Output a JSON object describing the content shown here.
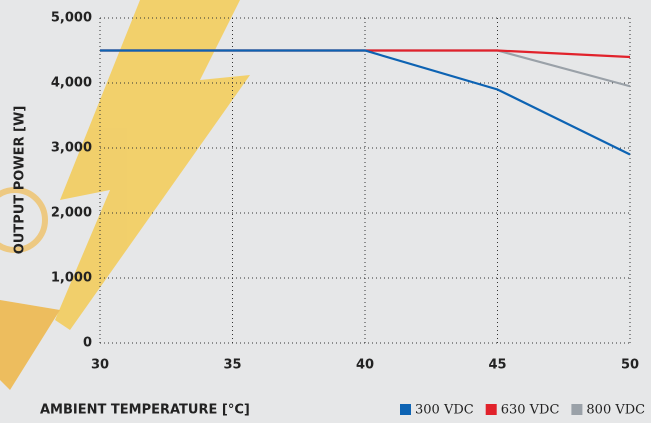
{
  "chart_data": {
    "type": "line",
    "x_label": "AMBIENT TEMPERATURE [°C]",
    "y_label": "OUTPUT POWER [W]",
    "x": [
      30,
      40,
      45,
      50
    ],
    "series": [
      {
        "name": "300 VDC",
        "color": "#0d63b3",
        "values": [
          4500,
          4500,
          3900,
          2900
        ]
      },
      {
        "name": "630 VDC",
        "color": "#e1222b",
        "values": [
          4500,
          4500,
          4500,
          4400
        ]
      },
      {
        "name": "800 VDC",
        "color": "#9aa1a8",
        "values": [
          4500,
          4500,
          4500,
          3950
        ]
      }
    ],
    "xlim": [
      30,
      50
    ],
    "xticks": [
      30,
      35,
      40,
      45,
      50
    ],
    "ylim": [
      0,
      5000
    ],
    "yticks": [
      0,
      {
        "value": 1000,
        "label": "1,000"
      },
      {
        "value": 2000,
        "label": "2,000"
      },
      {
        "value": 3000,
        "label": "3,000"
      },
      {
        "value": 4000,
        "label": "4,000"
      },
      {
        "value": 5000,
        "label": "5,000"
      }
    ],
    "grid": true
  }
}
